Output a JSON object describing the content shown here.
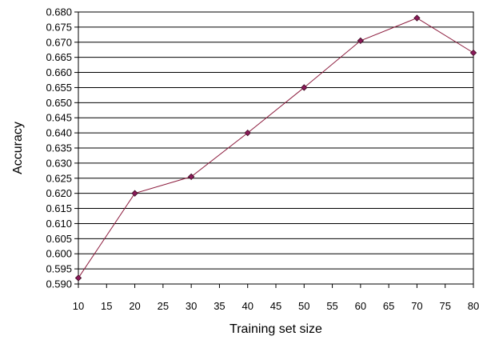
{
  "chart_data": {
    "type": "line",
    "title": "",
    "xlabel": "Training set size",
    "ylabel": "Accuracy",
    "x": [
      10,
      20,
      30,
      40,
      50,
      60,
      70,
      80
    ],
    "series": [
      {
        "values": [
          0.592,
          0.62,
          0.6255,
          0.64,
          0.655,
          0.6705,
          0.678,
          0.6665
        ]
      }
    ],
    "xlim": [
      10,
      80
    ],
    "ylim": [
      0.59,
      0.68
    ],
    "x_ticks": [
      "10",
      "15",
      "20",
      "25",
      "30",
      "35",
      "40",
      "45",
      "50",
      "55",
      "60",
      "65",
      "70",
      "75",
      "80"
    ],
    "y_ticks": [
      "0.590",
      "0.595",
      "0.600",
      "0.605",
      "0.610",
      "0.615",
      "0.620",
      "0.625",
      "0.630",
      "0.635",
      "0.640",
      "0.645",
      "0.650",
      "0.655",
      "0.660",
      "0.665",
      "0.670",
      "0.675",
      "0.680"
    ],
    "grid": "horizontal",
    "legend": "none",
    "line_color": "#8b1a3c",
    "marker_fill": "#8b1a5a",
    "marker_shape": "diamond"
  }
}
